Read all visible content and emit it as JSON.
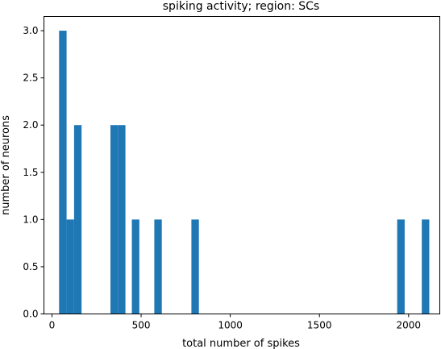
{
  "chart_data": {
    "type": "bar",
    "title": "spiking activity; region: SCs",
    "xlabel": "total number of spikes",
    "ylabel": "number of neurons",
    "xlim": [
      -45,
      2175
    ],
    "ylim": [
      0,
      3.15
    ],
    "xticks": [
      0,
      500,
      1000,
      1500,
      2000
    ],
    "xtick_labels": [
      "0",
      "500",
      "1000",
      "1500",
      "2000"
    ],
    "yticks": [
      0,
      0.5,
      1,
      1.5,
      2,
      2.5,
      3
    ],
    "ytick_labels": [
      "0.0",
      "0.5",
      "1.0",
      "1.5",
      "2.0",
      "2.5",
      "3.0"
    ],
    "bar_color": "#1f77b4",
    "bins": [
      {
        "x0": 40,
        "x1": 82,
        "value": 3
      },
      {
        "x0": 82,
        "x1": 124,
        "value": 1
      },
      {
        "x0": 124,
        "x1": 166,
        "value": 2
      },
      {
        "x0": 328,
        "x1": 370,
        "value": 2
      },
      {
        "x0": 370,
        "x1": 412,
        "value": 2
      },
      {
        "x0": 448,
        "x1": 490,
        "value": 1
      },
      {
        "x0": 574,
        "x1": 616,
        "value": 1
      },
      {
        "x0": 782,
        "x1": 824,
        "value": 1
      },
      {
        "x0": 1936,
        "x1": 1978,
        "value": 1
      },
      {
        "x0": 2074,
        "x1": 2116,
        "value": 1
      }
    ]
  }
}
